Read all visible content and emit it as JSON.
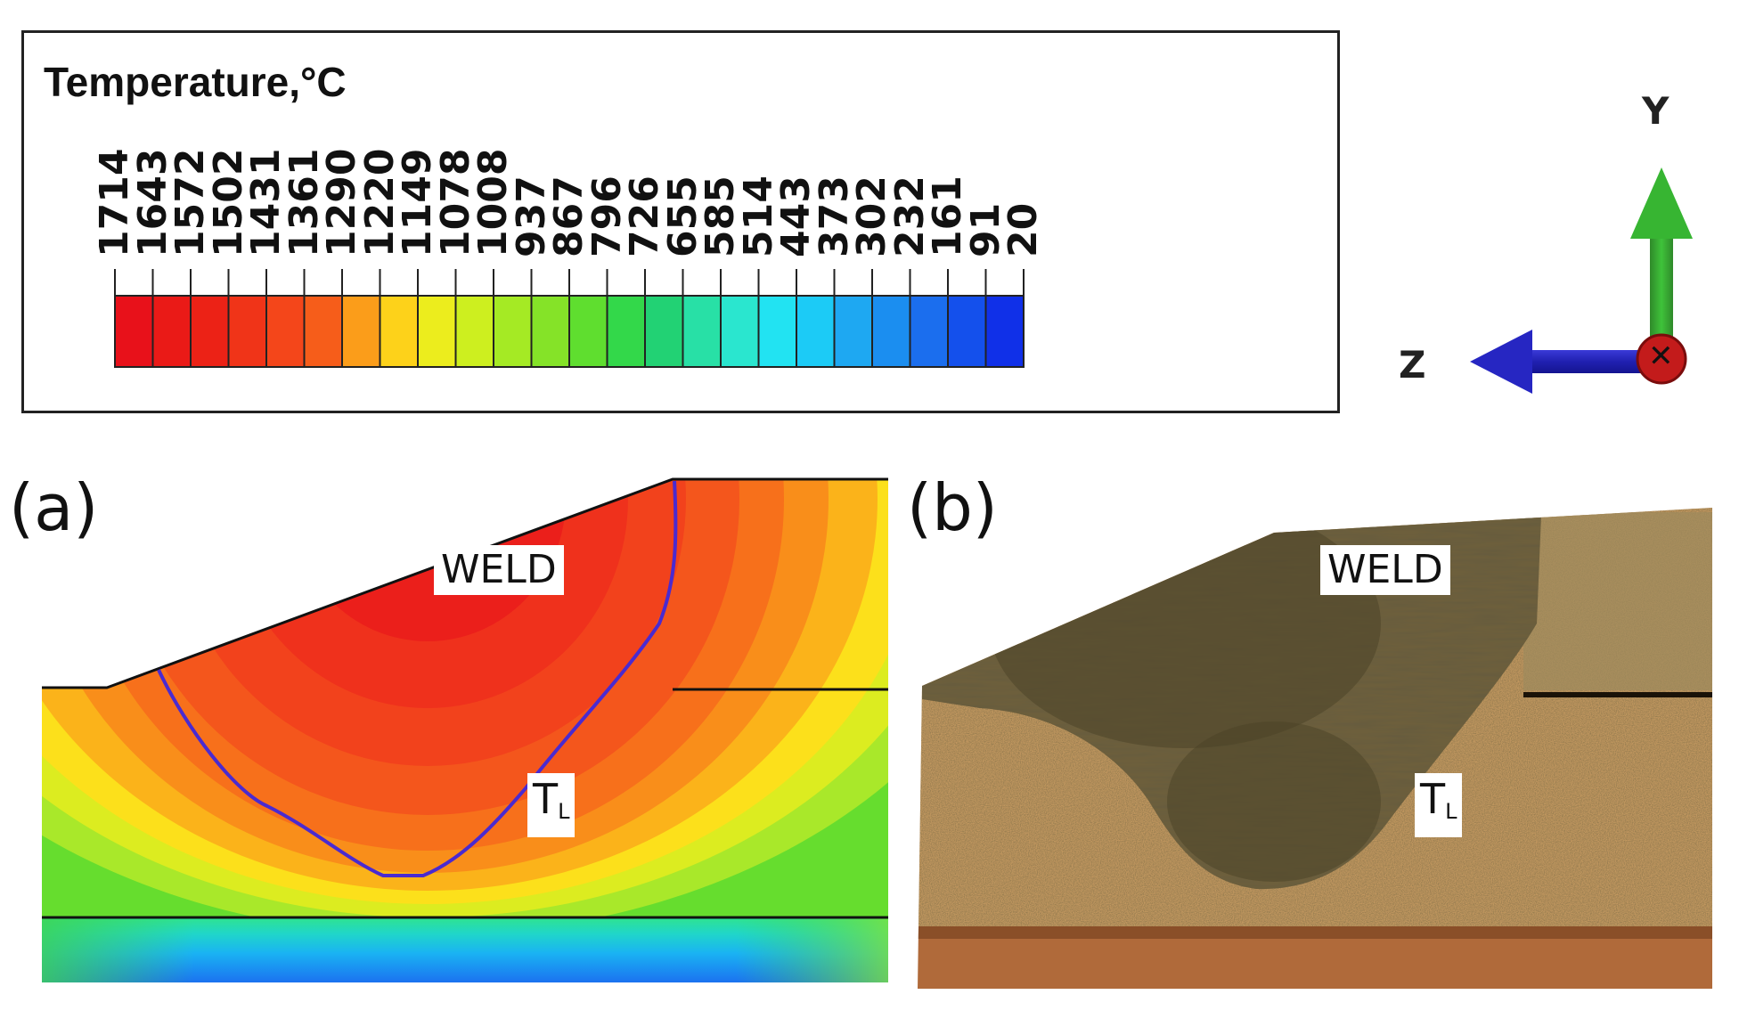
{
  "legend": {
    "title": "Temperature,°C",
    "ticks": [
      "1714",
      "1643",
      "1572",
      "1502",
      "1431",
      "1361",
      "1290",
      "1220",
      "1149",
      "1078",
      "1008",
      "937",
      "867",
      "796",
      "726",
      "655",
      "585",
      "514",
      "443",
      "373",
      "302",
      "232",
      "161",
      "91",
      "20"
    ],
    "colors": [
      "#e8111a",
      "#ea1a17",
      "#ec2216",
      "#f03418",
      "#f4461a",
      "#f65d1a",
      "#fb9d1a",
      "#fdd21a",
      "#eced1d",
      "#cdef1f",
      "#a5ea24",
      "#85e328",
      "#5fde2f",
      "#33d84a",
      "#22d274",
      "#28e0a6",
      "#2ae6cf",
      "#22e3f2",
      "#1ccbf6",
      "#1ea8f2",
      "#1b8ef0",
      "#1b6eee",
      "#1450ec",
      "#1030e8"
    ]
  },
  "axes": {
    "y_label": "Y",
    "z_label": "Z",
    "x_symbol": "✕"
  },
  "panel_a": {
    "label": "(a)",
    "weld_label": "WELD",
    "tl_main": "T",
    "tl_sub": "L"
  },
  "panel_b": {
    "label": "(b)",
    "weld_label": "WELD",
    "tl_main": "T",
    "tl_sub": "L"
  }
}
